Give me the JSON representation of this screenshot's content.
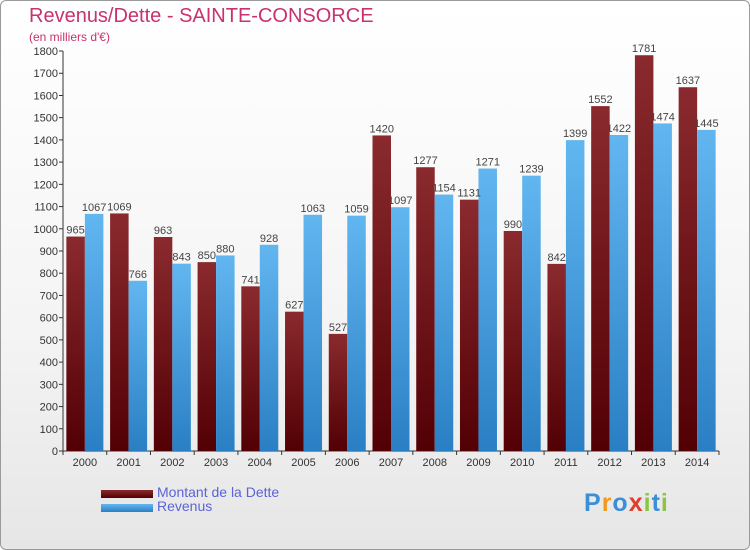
{
  "chart_data": {
    "type": "bar",
    "title": "Revenus/Dette - SAINTE-CONSORCE",
    "subtitle": "(en milliers d'€)",
    "categories": [
      "2000",
      "2001",
      "2002",
      "2003",
      "2004",
      "2005",
      "2006",
      "2007",
      "2008",
      "2009",
      "2010",
      "2011",
      "2012",
      "2013",
      "2014"
    ],
    "series": [
      {
        "name": "Montant de la Dette",
        "color": "#7a1418",
        "values": [
          965,
          1069,
          963,
          850,
          741,
          627,
          527,
          1420,
          1277,
          1131,
          990,
          842,
          1552,
          1781,
          1637
        ]
      },
      {
        "name": "Revenus",
        "color": "#3d9ce0",
        "values": [
          1067,
          766,
          843,
          880,
          928,
          1063,
          1059,
          1097,
          1154,
          1271,
          1239,
          1399,
          1422,
          1474,
          1445
        ]
      }
    ],
    "ylim": [
      0,
      1800
    ],
    "ytick_step": 100,
    "grid": false,
    "legend_position": "bottom-left"
  },
  "logo": {
    "text": "Proxiti",
    "letters": [
      {
        "char": "P",
        "color": "#3a8fd8"
      },
      {
        "char": "r",
        "color": "#f29a1f"
      },
      {
        "char": "o",
        "color": "#3a8fd8"
      },
      {
        "char": "x",
        "color": "#e23c2a"
      },
      {
        "char": "i",
        "color": "#8cc63f"
      },
      {
        "char": "t",
        "color": "#3a8fd8"
      },
      {
        "char": "i",
        "color": "#8cc63f"
      }
    ]
  }
}
